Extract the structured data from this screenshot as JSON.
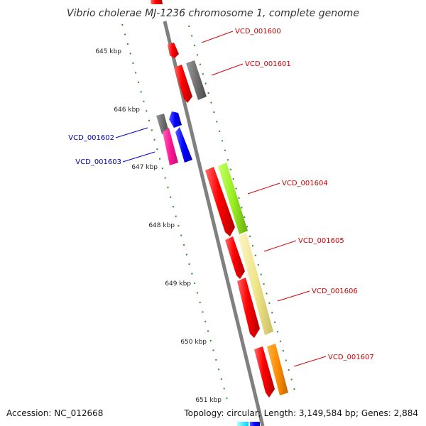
{
  "title": "Vibrio cholerae MJ-1236 chromosome 1, complete genome",
  "footer": {
    "accession": "Accession: NC_012668",
    "topology": "Topology: circular; Length: 3,149,584 bp; Genes: 2,884"
  },
  "ticks": [
    "645 kbp",
    "646 kbp",
    "647 kbp",
    "648 kbp",
    "649 kbp",
    "650 kbp",
    "651 kbp"
  ],
  "genes": [
    {
      "label": "VCD_001600",
      "strand": "+",
      "color": "#cc0000"
    },
    {
      "label": "VCD_001601",
      "strand": "+",
      "color": "#cc0000"
    },
    {
      "label": "VCD_001602",
      "strand": "-",
      "color": "#0000aa"
    },
    {
      "label": "VCD_001603",
      "strand": "-",
      "color": "#0000aa"
    },
    {
      "label": "VCD_001604",
      "strand": "+",
      "color": "#cc0000"
    },
    {
      "label": "VCD_001605",
      "strand": "+",
      "color": "#cc0000"
    },
    {
      "label": "VCD_001606",
      "strand": "+",
      "color": "#cc0000"
    },
    {
      "label": "VCD_001607",
      "strand": "+",
      "color": "#cc0000"
    }
  ],
  "colors": {
    "red": "#ff0000",
    "gray": "#707070",
    "blue": "#0000ff",
    "magenta": "#ff1493",
    "green": "#99ee22",
    "khaki": "#f0e68c",
    "orange": "#ff8c00",
    "cyan": "#00ffff",
    "backbone": "#808080",
    "tickmark": "#228b22"
  }
}
